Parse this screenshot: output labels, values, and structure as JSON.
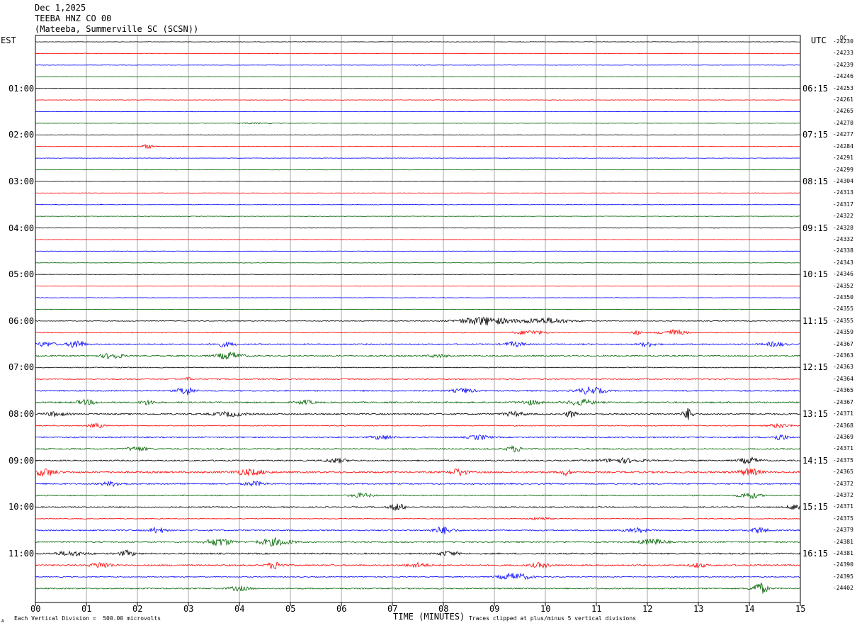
{
  "header": {
    "date": "Dec 1,2025",
    "station": "TEEBA HNZ CO 00",
    "location": "(Mateeba, Summerville SC (SCSN))"
  },
  "left_timezone": "EST",
  "right_timezone": "UTC",
  "dc_label": "DC",
  "footer": {
    "xlabel": "TIME (MINUTES)",
    "scale_note": "Each Vertical Division =  500.00 microvolts",
    "clip_note": "Traces clipped at plus/minus 5 vertical divisions",
    "corner_mark": "A"
  },
  "colors": {
    "trace_cycle": [
      "#000000",
      "#ff0000",
      "#0000ff",
      "#006400"
    ],
    "grid": "#808080"
  },
  "chart_data": {
    "type": "line",
    "title": "",
    "xlabel": "TIME (MINUTES)",
    "ylabel": "",
    "xlim": [
      0,
      15
    ],
    "x_ticks": [
      "00",
      "01",
      "02",
      "03",
      "04",
      "05",
      "06",
      "07",
      "08",
      "09",
      "10",
      "11",
      "12",
      "13",
      "14",
      "15"
    ],
    "trace_count": 48,
    "minutes_per_trace": 15,
    "left_hour_labels": [
      "01:00",
      "02:00",
      "03:00",
      "04:00",
      "05:00",
      "06:00",
      "07:00",
      "08:00",
      "09:00",
      "10:00",
      "11:00"
    ],
    "right_hour_labels": [
      "06:15",
      "07:15",
      "08:15",
      "09:15",
      "10:15",
      "11:15",
      "12:15",
      "13:15",
      "14:15",
      "15:15",
      "16:15"
    ],
    "dc_offsets": [
      "-24230",
      "-24233",
      "-24239",
      "-24246",
      "-24253",
      "-24261",
      "-24265",
      "-24270",
      "-24277",
      "-24284",
      "-24291",
      "-24299",
      "-24304",
      "-24313",
      "-24317",
      "-24322",
      "-24328",
      "-24332",
      "-24338",
      "-24343",
      "-24346",
      "-24352",
      "-24350",
      "-24355",
      "-24355",
      "-24359",
      "-24367",
      "-24363",
      "-24363",
      "-24364",
      "-24365",
      "-24367",
      "-24371",
      "-24368",
      "-24369",
      "-24371",
      "-24375",
      "-24365",
      "-24372",
      "-24372",
      "-24371",
      "-24375",
      "-24379",
      "-24381",
      "-24381",
      "-24390",
      "-24395",
      "-24402"
    ],
    "noise_levels": [
      0.3,
      0.3,
      0.3,
      0.3,
      0.3,
      0.3,
      0.3,
      0.3,
      0.3,
      0.3,
      0.3,
      0.3,
      0.3,
      0.3,
      0.3,
      0.3,
      0.3,
      0.3,
      0.3,
      0.3,
      0.3,
      0.3,
      0.3,
      0.3,
      0.5,
      0.6,
      0.9,
      0.9,
      0.6,
      0.7,
      0.9,
      1.0,
      1.0,
      0.7,
      0.9,
      0.9,
      0.9,
      1.2,
      0.9,
      0.8,
      0.8,
      0.5,
      0.9,
      1.0,
      1.0,
      1.0,
      0.6,
      0.9
    ],
    "events": [
      {
        "trace": 7,
        "minute": 4.3,
        "width": 0.4,
        "amp": 0.8
      },
      {
        "trace": 9,
        "minute": 2.2,
        "width": 0.12,
        "amp": 3
      },
      {
        "trace": 24,
        "minute": 8.8,
        "width": 0.5,
        "amp": 6
      },
      {
        "trace": 24,
        "minute": 10.0,
        "width": 0.5,
        "amp": 4
      },
      {
        "trace": 25,
        "minute": 9.7,
        "width": 0.3,
        "amp": 3
      },
      {
        "trace": 25,
        "minute": 11.8,
        "width": 0.1,
        "amp": 3
      },
      {
        "trace": 25,
        "minute": 12.5,
        "width": 0.25,
        "amp": 4
      },
      {
        "trace": 26,
        "minute": 0.2,
        "width": 0.2,
        "amp": 3
      },
      {
        "trace": 26,
        "minute": 0.8,
        "width": 0.15,
        "amp": 6
      },
      {
        "trace": 26,
        "minute": 3.7,
        "width": 0.2,
        "amp": 3
      },
      {
        "trace": 26,
        "minute": 9.4,
        "width": 0.2,
        "amp": 3
      },
      {
        "trace": 26,
        "minute": 12.0,
        "width": 0.15,
        "amp": 3
      },
      {
        "trace": 26,
        "minute": 14.5,
        "width": 0.2,
        "amp": 3
      },
      {
        "trace": 27,
        "minute": 1.5,
        "width": 0.2,
        "amp": 4
      },
      {
        "trace": 27,
        "minute": 3.8,
        "width": 0.25,
        "amp": 5
      },
      {
        "trace": 27,
        "minute": 7.9,
        "width": 0.2,
        "amp": 2
      },
      {
        "trace": 29,
        "minute": 3.0,
        "width": 0.05,
        "amp": 3
      },
      {
        "trace": 30,
        "minute": 2.95,
        "width": 0.15,
        "amp": 6
      },
      {
        "trace": 30,
        "minute": 8.4,
        "width": 0.2,
        "amp": 3
      },
      {
        "trace": 30,
        "minute": 10.9,
        "width": 0.25,
        "amp": 5
      },
      {
        "trace": 31,
        "minute": 1.0,
        "width": 0.2,
        "amp": 3
      },
      {
        "trace": 31,
        "minute": 2.2,
        "width": 0.15,
        "amp": 3
      },
      {
        "trace": 31,
        "minute": 5.3,
        "width": 0.15,
        "amp": 3
      },
      {
        "trace": 31,
        "minute": 9.7,
        "width": 0.2,
        "amp": 3
      },
      {
        "trace": 31,
        "minute": 10.7,
        "width": 0.25,
        "amp": 4
      },
      {
        "trace": 32,
        "minute": 0.4,
        "width": 0.2,
        "amp": 3
      },
      {
        "trace": 32,
        "minute": 3.8,
        "width": 0.3,
        "amp": 3
      },
      {
        "trace": 32,
        "minute": 9.4,
        "width": 0.2,
        "amp": 3
      },
      {
        "trace": 32,
        "minute": 10.5,
        "width": 0.1,
        "amp": 5
      },
      {
        "trace": 32,
        "minute": 12.8,
        "width": 0.1,
        "amp": 8
      },
      {
        "trace": 33,
        "minute": 1.2,
        "width": 0.15,
        "amp": 3
      },
      {
        "trace": 33,
        "minute": 14.6,
        "width": 0.2,
        "amp": 3
      },
      {
        "trace": 34,
        "minute": 6.8,
        "width": 0.2,
        "amp": 3
      },
      {
        "trace": 34,
        "minute": 8.7,
        "width": 0.2,
        "amp": 3
      },
      {
        "trace": 34,
        "minute": 14.6,
        "width": 0.15,
        "amp": 4
      },
      {
        "trace": 35,
        "minute": 2.0,
        "width": 0.2,
        "amp": 3
      },
      {
        "trace": 35,
        "minute": 9.4,
        "width": 0.15,
        "amp": 4
      },
      {
        "trace": 36,
        "minute": 5.9,
        "width": 0.2,
        "amp": 3
      },
      {
        "trace": 36,
        "minute": 11.5,
        "width": 0.4,
        "amp": 3
      },
      {
        "trace": 36,
        "minute": 14.0,
        "width": 0.2,
        "amp": 4
      },
      {
        "trace": 37,
        "minute": 0.2,
        "width": 0.2,
        "amp": 5
      },
      {
        "trace": 37,
        "minute": 4.2,
        "width": 0.3,
        "amp": 4
      },
      {
        "trace": 37,
        "minute": 8.3,
        "width": 0.15,
        "amp": 5
      },
      {
        "trace": 37,
        "minute": 10.4,
        "width": 0.1,
        "amp": 4
      },
      {
        "trace": 37,
        "minute": 14.0,
        "width": 0.2,
        "amp": 5
      },
      {
        "trace": 38,
        "minute": 1.5,
        "width": 0.2,
        "amp": 3
      },
      {
        "trace": 38,
        "minute": 4.3,
        "width": 0.2,
        "amp": 3
      },
      {
        "trace": 39,
        "minute": 6.4,
        "width": 0.2,
        "amp": 3
      },
      {
        "trace": 39,
        "minute": 14.0,
        "width": 0.2,
        "amp": 4
      },
      {
        "trace": 40,
        "minute": 7.1,
        "width": 0.15,
        "amp": 5
      },
      {
        "trace": 40,
        "minute": 14.9,
        "width": 0.15,
        "amp": 4
      },
      {
        "trace": 41,
        "minute": 9.9,
        "width": 0.2,
        "amp": 2
      },
      {
        "trace": 42,
        "minute": 2.4,
        "width": 0.15,
        "amp": 4
      },
      {
        "trace": 42,
        "minute": 8.0,
        "width": 0.2,
        "amp": 5
      },
      {
        "trace": 42,
        "minute": 11.8,
        "width": 0.2,
        "amp": 3
      },
      {
        "trace": 42,
        "minute": 14.2,
        "width": 0.15,
        "amp": 4
      },
      {
        "trace": 43,
        "minute": 3.6,
        "width": 0.25,
        "amp": 5
      },
      {
        "trace": 43,
        "minute": 4.7,
        "width": 0.3,
        "amp": 5
      },
      {
        "trace": 43,
        "minute": 12.1,
        "width": 0.25,
        "amp": 4
      },
      {
        "trace": 44,
        "minute": 0.7,
        "width": 0.3,
        "amp": 3
      },
      {
        "trace": 44,
        "minute": 1.8,
        "width": 0.15,
        "amp": 4
      },
      {
        "trace": 44,
        "minute": 8.1,
        "width": 0.2,
        "amp": 3
      },
      {
        "trace": 45,
        "minute": 1.3,
        "width": 0.2,
        "amp": 4
      },
      {
        "trace": 45,
        "minute": 4.7,
        "width": 0.15,
        "amp": 5
      },
      {
        "trace": 45,
        "minute": 7.5,
        "width": 0.2,
        "amp": 3
      },
      {
        "trace": 45,
        "minute": 9.9,
        "width": 0.2,
        "amp": 3
      },
      {
        "trace": 45,
        "minute": 13.0,
        "width": 0.15,
        "amp": 3
      },
      {
        "trace": 46,
        "minute": 9.4,
        "width": 0.3,
        "amp": 5
      },
      {
        "trace": 47,
        "minute": 4.0,
        "width": 0.2,
        "amp": 3
      },
      {
        "trace": 47,
        "minute": 14.2,
        "width": 0.15,
        "amp": 8
      }
    ]
  }
}
